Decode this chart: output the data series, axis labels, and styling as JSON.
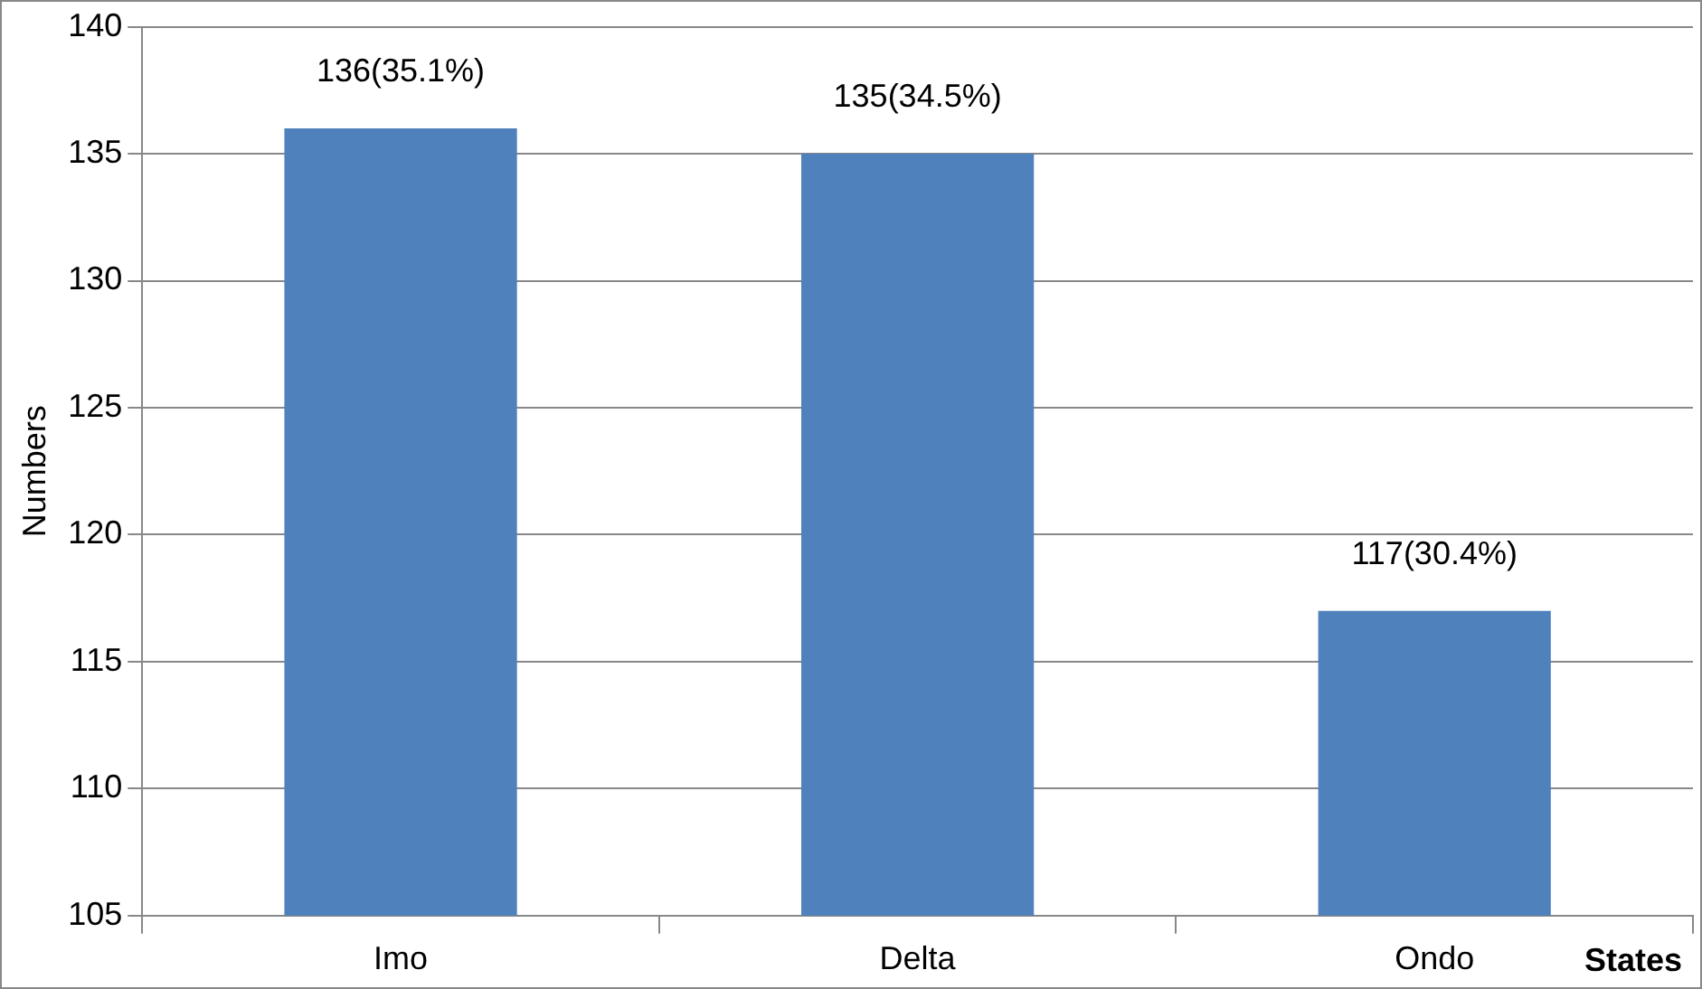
{
  "chart_data": {
    "type": "bar",
    "xlabel": "States",
    "ylabel": "Numbers",
    "categories": [
      "Imo",
      "Delta",
      "Ondo"
    ],
    "values": [
      136,
      135,
      117
    ],
    "color": "#4f81bd",
    "value_labels": [
      "136(35.1%)",
      "135(34.5%)",
      "117(30.4%)"
    ],
    "ylim": [
      105,
      140
    ],
    "yticks": [
      105,
      110,
      115,
      120,
      125,
      130,
      135,
      140
    ],
    "grid": "y",
    "legend": false
  }
}
